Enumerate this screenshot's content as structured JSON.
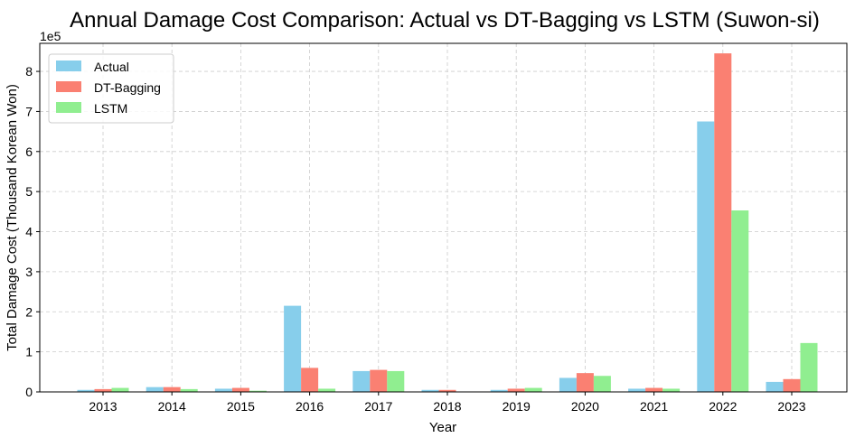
{
  "chart_data": {
    "type": "bar",
    "title": "Annual Damage Cost Comparison: Actual vs DT-Bagging vs LSTM (Suwon-si)",
    "xlabel": "Year",
    "ylabel": "Total Damage Cost (Thousand Korean Won)",
    "y_scale_label": "1e5",
    "ylim": [
      0,
      8.7
    ],
    "yticks": [
      0,
      1,
      2,
      3,
      4,
      5,
      6,
      7,
      8
    ],
    "grid": true,
    "legend_position": "top-left",
    "categories": [
      "2013",
      "2014",
      "2015",
      "2016",
      "2017",
      "2018",
      "2019",
      "2020",
      "2021",
      "2022",
      "2023"
    ],
    "series": [
      {
        "name": "Actual",
        "color": "#87ceeb",
        "values": [
          0.05,
          0.12,
          0.08,
          2.15,
          0.52,
          0.05,
          0.05,
          0.35,
          0.08,
          6.75,
          0.25
        ]
      },
      {
        "name": "DT-Bagging",
        "color": "#fa8072",
        "values": [
          0.07,
          0.12,
          0.1,
          0.6,
          0.55,
          0.05,
          0.08,
          0.47,
          0.1,
          8.45,
          0.32
        ]
      },
      {
        "name": "LSTM",
        "color": "#90ee90",
        "values": [
          0.1,
          0.07,
          0.03,
          0.08,
          0.52,
          0.0,
          0.1,
          0.4,
          0.08,
          4.53,
          1.22
        ]
      }
    ]
  }
}
